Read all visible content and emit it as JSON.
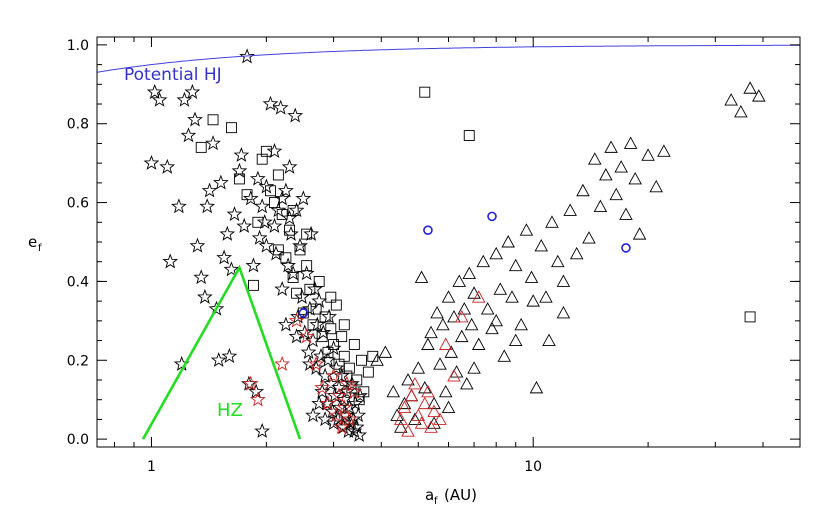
{
  "chart_data": {
    "type": "scatter",
    "xlabel": "a",
    "xlabel_sub": "f",
    "xlabel_unit": "(AU)",
    "ylabel": "e",
    "ylabel_sub": "f",
    "x_scale": "log",
    "xlim": [
      0.72,
      50
    ],
    "ylim": [
      -0.02,
      1.02
    ],
    "x_tick_labels": [
      "1",
      "10"
    ],
    "y_tick_labels": [
      "0.0",
      "0.2",
      "0.4",
      "0.6",
      "0.8",
      "1.0"
    ],
    "grid": false,
    "annotations": [
      {
        "text": "Potential HJ",
        "color": "#3333cc"
      },
      {
        "text": "HZ",
        "color": "#22dd22"
      }
    ],
    "lines": [
      {
        "name": "Potential HJ",
        "color": "#4040e0",
        "form": "e = 1 - 0.05/a"
      },
      {
        "name": "HZ",
        "color": "#22dd22",
        "x": [
          0.95,
          1.7,
          2.45
        ],
        "y": [
          0.0,
          0.435,
          0.0
        ]
      }
    ],
    "series": [
      {
        "marker": "star",
        "color": "#000000",
        "points": [
          [
            1.0,
            0.7
          ],
          [
            1.02,
            0.88
          ],
          [
            1.05,
            0.86
          ],
          [
            1.1,
            0.69
          ],
          [
            1.12,
            0.45
          ],
          [
            1.18,
            0.59
          ],
          [
            1.2,
            0.19
          ],
          [
            1.22,
            0.86
          ],
          [
            1.25,
            0.77
          ],
          [
            1.28,
            0.88
          ],
          [
            1.3,
            0.81
          ],
          [
            1.32,
            0.49
          ],
          [
            1.35,
            0.41
          ],
          [
            1.38,
            0.36
          ],
          [
            1.4,
            0.59
          ],
          [
            1.42,
            0.63
          ],
          [
            1.45,
            0.75
          ],
          [
            1.48,
            0.33
          ],
          [
            1.5,
            0.2
          ],
          [
            1.52,
            0.65
          ],
          [
            1.55,
            0.46
          ],
          [
            1.58,
            0.52
          ],
          [
            1.6,
            0.21
          ],
          [
            1.62,
            0.43
          ],
          [
            1.65,
            0.57
          ],
          [
            1.7,
            0.68
          ],
          [
            1.72,
            0.72
          ],
          [
            1.75,
            0.54
          ],
          [
            1.78,
            0.97
          ],
          [
            1.8,
            0.14
          ],
          [
            1.82,
            0.61
          ],
          [
            1.85,
            0.44
          ],
          [
            1.88,
            0.12
          ],
          [
            1.9,
            0.66
          ],
          [
            1.92,
            0.51
          ],
          [
            1.95,
            0.02
          ],
          [
            1.98,
            0.55
          ],
          [
            2.0,
            0.64
          ],
          [
            2.05,
            0.85
          ],
          [
            2.1,
            0.73
          ],
          [
            2.12,
            0.47
          ],
          [
            2.15,
            0.58
          ],
          [
            2.18,
            0.84
          ],
          [
            2.2,
            0.38
          ],
          [
            2.25,
            0.63
          ],
          [
            2.28,
            0.44
          ],
          [
            2.3,
            0.69
          ],
          [
            2.32,
            0.52
          ],
          [
            2.35,
            0.42
          ],
          [
            2.38,
            0.82
          ],
          [
            2.4,
            0.58
          ],
          [
            2.42,
            0.31
          ],
          [
            2.45,
            0.49
          ],
          [
            2.48,
            0.36
          ],
          [
            2.5,
            0.61
          ],
          [
            2.52,
            0.27
          ],
          [
            2.55,
            0.42
          ],
          [
            2.58,
            0.22
          ],
          [
            2.6,
            0.33
          ],
          [
            2.62,
            0.52
          ],
          [
            2.65,
            0.25
          ],
          [
            2.68,
            0.38
          ],
          [
            2.7,
            0.18
          ],
          [
            2.72,
            0.29
          ],
          [
            2.75,
            0.35
          ],
          [
            2.78,
            0.21
          ],
          [
            2.8,
            0.12
          ],
          [
            2.82,
            0.27
          ],
          [
            2.85,
            0.16
          ],
          [
            2.88,
            0.09
          ],
          [
            2.9,
            0.2
          ],
          [
            2.92,
            0.31
          ],
          [
            2.95,
            0.14
          ],
          [
            2.98,
            0.07
          ],
          [
            3.0,
            0.23
          ],
          [
            3.02,
            0.11
          ],
          [
            3.05,
            0.18
          ],
          [
            3.08,
            0.05
          ],
          [
            3.1,
            0.13
          ],
          [
            3.12,
            0.08
          ],
          [
            3.15,
            0.16
          ],
          [
            3.18,
            0.03
          ],
          [
            3.2,
            0.1
          ],
          [
            3.22,
            0.06
          ],
          [
            3.25,
            0.12
          ],
          [
            3.28,
            0.02
          ],
          [
            3.3,
            0.08
          ],
          [
            3.32,
            0.04
          ],
          [
            3.35,
            0.14
          ],
          [
            3.38,
            0.05
          ],
          [
            3.4,
            0.02
          ],
          [
            3.42,
            0.09
          ],
          [
            3.45,
            0.03
          ],
          [
            3.48,
            0.06
          ],
          [
            3.5,
            0.01
          ],
          [
            3.52,
            0.11
          ],
          [
            2.2,
            0.61
          ],
          [
            2.3,
            0.56
          ],
          [
            2.0,
            0.49
          ],
          [
            1.95,
            0.59
          ],
          [
            2.1,
            0.54
          ],
          [
            2.25,
            0.29
          ],
          [
            2.4,
            0.26
          ],
          [
            2.6,
            0.19
          ],
          [
            2.75,
            0.09
          ],
          [
            2.65,
            0.06
          ],
          [
            2.85,
            0.05
          ],
          [
            3.0,
            0.04
          ]
        ]
      },
      {
        "marker": "square",
        "color": "#000000",
        "points": [
          [
            1.35,
            0.74
          ],
          [
            1.45,
            0.81
          ],
          [
            1.62,
            0.79
          ],
          [
            1.7,
            0.66
          ],
          [
            1.78,
            0.62
          ],
          [
            1.85,
            0.39
          ],
          [
            1.9,
            0.55
          ],
          [
            1.95,
            0.71
          ],
          [
            2.0,
            0.73
          ],
          [
            2.05,
            0.63
          ],
          [
            2.1,
            0.6
          ],
          [
            2.15,
            0.67
          ],
          [
            2.2,
            0.57
          ],
          [
            2.25,
            0.46
          ],
          [
            2.3,
            0.53
          ],
          [
            2.35,
            0.41
          ],
          [
            2.4,
            0.37
          ],
          [
            2.45,
            0.48
          ],
          [
            2.5,
            0.32
          ],
          [
            2.55,
            0.44
          ],
          [
            2.6,
            0.38
          ],
          [
            2.65,
            0.29
          ],
          [
            2.7,
            0.33
          ],
          [
            2.75,
            0.4
          ],
          [
            2.8,
            0.26
          ],
          [
            2.85,
            0.31
          ],
          [
            2.9,
            0.22
          ],
          [
            2.95,
            0.28
          ],
          [
            3.0,
            0.24
          ],
          [
            3.05,
            0.34
          ],
          [
            3.1,
            0.19
          ],
          [
            3.15,
            0.26
          ],
          [
            3.2,
            0.21
          ],
          [
            3.25,
            0.16
          ],
          [
            3.3,
            0.18
          ],
          [
            3.35,
            0.13
          ],
          [
            3.4,
            0.24
          ],
          [
            3.45,
            0.15
          ],
          [
            3.5,
            0.1
          ],
          [
            3.55,
            0.2
          ],
          [
            3.6,
            0.12
          ],
          [
            3.7,
            0.17
          ],
          [
            3.8,
            0.21
          ],
          [
            2.55,
            0.52
          ],
          [
            2.35,
            0.58
          ],
          [
            2.15,
            0.48
          ],
          [
            2.95,
            0.36
          ],
          [
            3.2,
            0.29
          ],
          [
            5.2,
            0.88
          ],
          [
            6.8,
            0.77
          ],
          [
            37.0,
            0.31
          ]
        ]
      },
      {
        "marker": "triangle",
        "color": "#000000",
        "points": [
          [
            3.9,
            0.2
          ],
          [
            4.1,
            0.22
          ],
          [
            4.3,
            0.12
          ],
          [
            4.4,
            0.06
          ],
          [
            4.5,
            0.03
          ],
          [
            4.6,
            0.09
          ],
          [
            4.7,
            0.15
          ],
          [
            4.8,
            0.11
          ],
          [
            4.9,
            0.05
          ],
          [
            5.0,
            0.18
          ],
          [
            5.1,
            0.41
          ],
          [
            5.2,
            0.13
          ],
          [
            5.3,
            0.24
          ],
          [
            5.4,
            0.27
          ],
          [
            5.5,
            0.09
          ],
          [
            5.6,
            0.32
          ],
          [
            5.7,
            0.19
          ],
          [
            5.8,
            0.29
          ],
          [
            5.9,
            0.12
          ],
          [
            6.0,
            0.36
          ],
          [
            6.1,
            0.22
          ],
          [
            6.2,
            0.31
          ],
          [
            6.3,
            0.17
          ],
          [
            6.4,
            0.4
          ],
          [
            6.5,
            0.26
          ],
          [
            6.6,
            0.33
          ],
          [
            6.7,
            0.14
          ],
          [
            6.8,
            0.42
          ],
          [
            6.9,
            0.29
          ],
          [
            7.0,
            0.37
          ],
          [
            7.2,
            0.24
          ],
          [
            7.4,
            0.45
          ],
          [
            7.6,
            0.33
          ],
          [
            7.8,
            0.28
          ],
          [
            8.0,
            0.47
          ],
          [
            8.2,
            0.38
          ],
          [
            8.4,
            0.21
          ],
          [
            8.6,
            0.5
          ],
          [
            8.8,
            0.36
          ],
          [
            9.0,
            0.44
          ],
          [
            9.3,
            0.29
          ],
          [
            9.6,
            0.53
          ],
          [
            9.9,
            0.41
          ],
          [
            10.2,
            0.13
          ],
          [
            10.5,
            0.49
          ],
          [
            10.8,
            0.36
          ],
          [
            11.2,
            0.55
          ],
          [
            11.6,
            0.45
          ],
          [
            12.0,
            0.32
          ],
          [
            12.5,
            0.58
          ],
          [
            13.0,
            0.47
          ],
          [
            13.5,
            0.63
          ],
          [
            14.0,
            0.51
          ],
          [
            14.5,
            0.71
          ],
          [
            15.0,
            0.59
          ],
          [
            15.5,
            0.67
          ],
          [
            16.0,
            0.74
          ],
          [
            16.5,
            0.62
          ],
          [
            17.0,
            0.69
          ],
          [
            17.5,
            0.57
          ],
          [
            18.0,
            0.75
          ],
          [
            18.5,
            0.66
          ],
          [
            19.0,
            0.52
          ],
          [
            20.0,
            0.72
          ],
          [
            21.0,
            0.64
          ],
          [
            22.0,
            0.73
          ],
          [
            33.0,
            0.86
          ],
          [
            35.0,
            0.83
          ],
          [
            37.0,
            0.89
          ],
          [
            39.0,
            0.87
          ],
          [
            10.0,
            0.35
          ],
          [
            12.0,
            0.4
          ],
          [
            9.0,
            0.25
          ],
          [
            8.0,
            0.3
          ],
          [
            7.0,
            0.18
          ],
          [
            11.0,
            0.25
          ],
          [
            6.0,
            0.08
          ],
          [
            5.5,
            0.04
          ]
        ]
      },
      {
        "marker": "star",
        "color": "#cc2222",
        "points": [
          [
            2.4,
            0.3
          ],
          [
            2.55,
            0.26
          ],
          [
            2.7,
            0.19
          ],
          [
            2.8,
            0.13
          ],
          [
            2.9,
            0.09
          ],
          [
            3.0,
            0.16
          ],
          [
            3.05,
            0.06
          ],
          [
            3.1,
            0.11
          ],
          [
            3.15,
            0.03
          ],
          [
            3.2,
            0.08
          ],
          [
            3.25,
            0.14
          ],
          [
            3.3,
            0.05
          ],
          [
            3.4,
            0.12
          ],
          [
            2.2,
            0.19
          ],
          [
            1.82,
            0.14
          ],
          [
            1.9,
            0.1
          ]
        ]
      },
      {
        "marker": "triangle",
        "color": "#cc2222",
        "points": [
          [
            4.5,
            0.05
          ],
          [
            4.6,
            0.08
          ],
          [
            4.7,
            0.02
          ],
          [
            4.8,
            0.11
          ],
          [
            4.9,
            0.14
          ],
          [
            5.0,
            0.06
          ],
          [
            5.1,
            0.04
          ],
          [
            5.2,
            0.09
          ],
          [
            5.3,
            0.12
          ],
          [
            5.4,
            0.03
          ],
          [
            5.5,
            0.07
          ],
          [
            5.7,
            0.05
          ],
          [
            5.9,
            0.24
          ],
          [
            6.5,
            0.31
          ],
          [
            7.2,
            0.36
          ],
          [
            6.2,
            0.16
          ]
        ]
      },
      {
        "marker": "circle",
        "color": "#2222dd",
        "points": [
          [
            2.5,
            0.32
          ],
          [
            5.3,
            0.53
          ],
          [
            7.8,
            0.565
          ],
          [
            17.5,
            0.485
          ]
        ]
      }
    ]
  }
}
